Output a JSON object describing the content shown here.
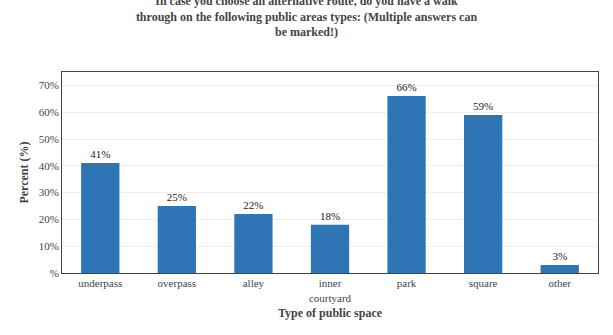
{
  "chart_data": {
    "type": "bar",
    "title": "In case you choose an alternative route, do you have a walk\nthrough on the following public areas types: (Multiple answers can\nbe marked!)",
    "xlabel": "Type of public space",
    "ylabel": "Percent (%)",
    "categories": [
      "underpass",
      "overpass",
      "alley",
      "inner\ncourtyard",
      "park",
      "square",
      "other"
    ],
    "values": [
      41,
      25,
      22,
      18,
      66,
      59,
      3
    ],
    "value_labels": [
      "41%",
      "25%",
      "22%",
      "18%",
      "66%",
      "59%",
      "3%"
    ],
    "data_labels": true,
    "color": "#2E75B6",
    "ylim": [
      0,
      75
    ],
    "yticks": [
      {
        "value": 0,
        "label": "%"
      },
      {
        "value": 10,
        "label": "10%"
      },
      {
        "value": 20,
        "label": "20%"
      },
      {
        "value": 30,
        "label": "30%"
      },
      {
        "value": 40,
        "label": "40%"
      },
      {
        "value": 50,
        "label": "50%"
      },
      {
        "value": 60,
        "label": "60%"
      },
      {
        "value": 70,
        "label": "70%"
      }
    ],
    "grid": true
  }
}
